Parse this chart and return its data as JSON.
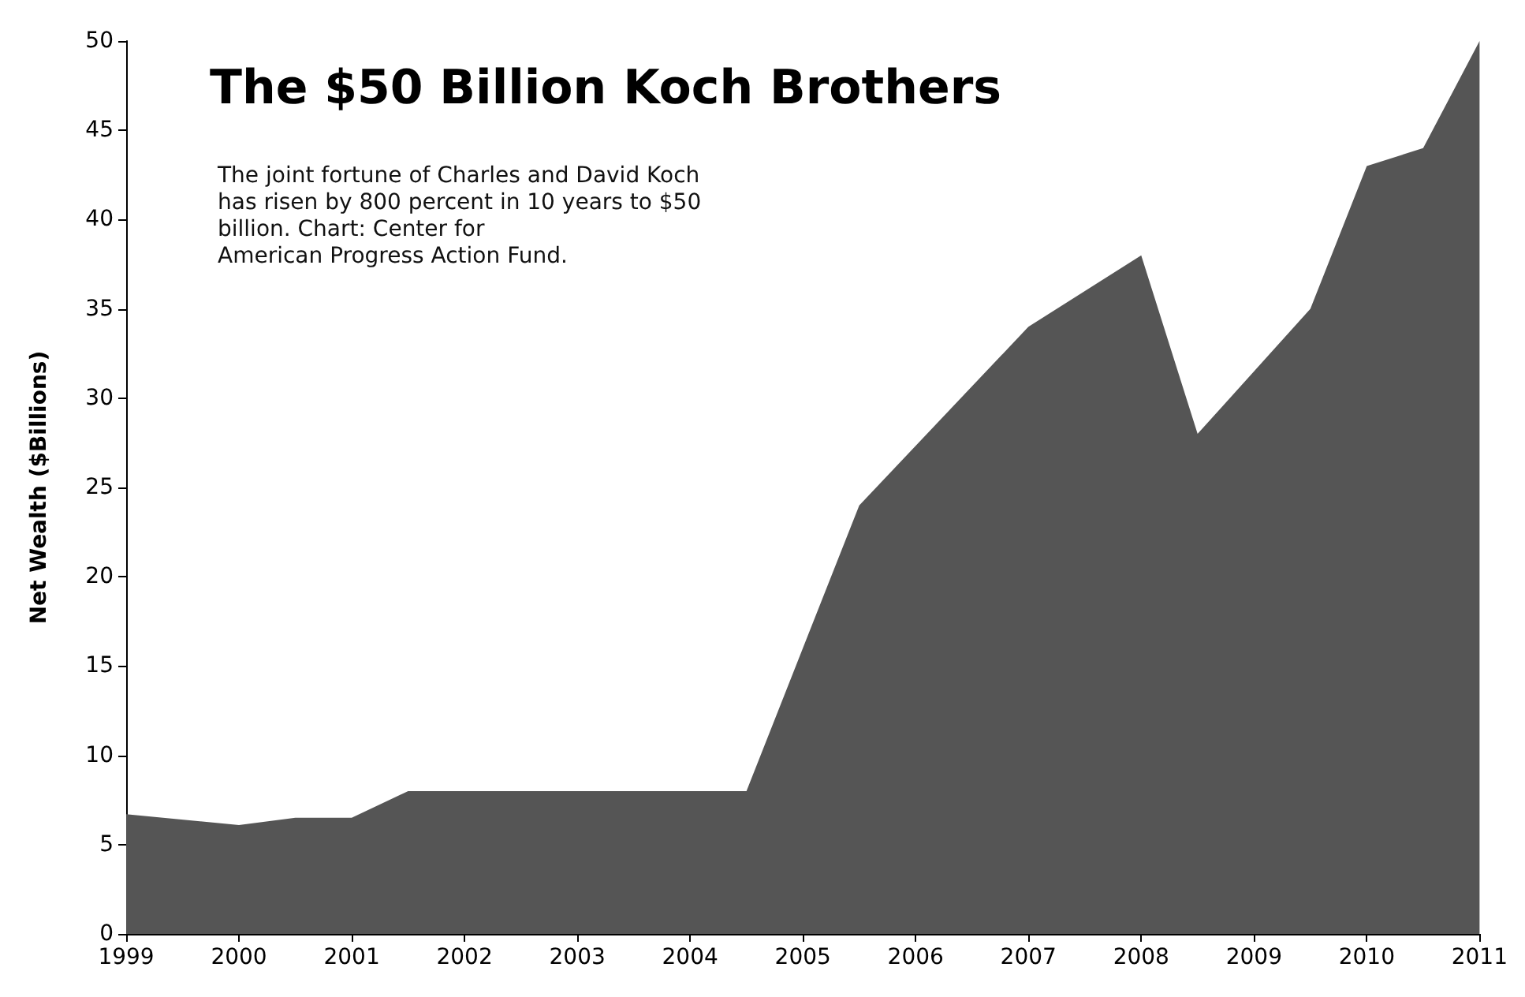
{
  "chart_data": {
    "type": "area",
    "title": "The $50 Billion Koch Brothers",
    "ylabel": "Net Wealth ($Billions)",
    "annotations": [
      "The joint fortune of Charles and David Koch\nhas risen by 800 percent in 10 years to $50\nbillion. Chart: Center for\nAmerican Progress Action Fund."
    ],
    "x": [
      1999,
      2000,
      2000.5,
      2001,
      2001.5,
      2002,
      2003,
      2004,
      2004.5,
      2005,
      2005.5,
      2007,
      2008,
      2008.5,
      2009.5,
      2010,
      2010.5,
      2011
    ],
    "series": [
      {
        "color": "#555555",
        "values": [
          6.7,
          6.1,
          6.5,
          6.5,
          8,
          8,
          8,
          8,
          8,
          16,
          24,
          34,
          38,
          28,
          35,
          43,
          44,
          50
        ]
      }
    ],
    "xlim": [
      1999,
      2011
    ],
    "xticks": [
      1999,
      2000,
      2001,
      2002,
      2003,
      2004,
      2005,
      2006,
      2007,
      2008,
      2009,
      2010,
      2011
    ],
    "ylim": [
      0,
      50
    ],
    "yticks": [
      0,
      5,
      10,
      15,
      20,
      25,
      30,
      35,
      40,
      45,
      50
    ],
    "grid": false
  }
}
